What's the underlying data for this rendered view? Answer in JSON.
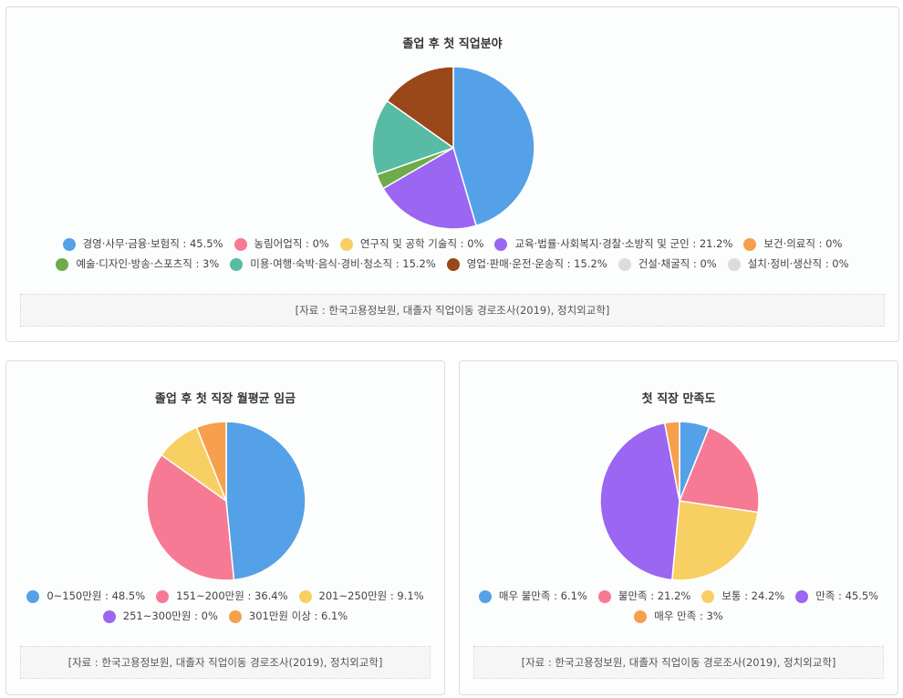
{
  "charts": [
    {
      "title": "졸업 후 첫 직업분야",
      "source": "[자료 : 한국고용정보원, 대졸자 직업이동 경로조사(2019), 정치외교학]",
      "legend": [
        {
          "text": "경영·사무·금융·보험직 : 45.5%",
          "color": "#55a1e8"
        },
        {
          "text": "농림어업직 : 0%",
          "color": "#f77a95"
        },
        {
          "text": "연구직 및 공학 기술직 : 0%",
          "color": "#f7cf63"
        },
        {
          "text": "교육·법률·사회복지·경찰·소방직 및 군인 : 21.2%",
          "color": "#9b66f2"
        },
        {
          "text": "보건·의료직 : 0%",
          "color": "#f6a04d"
        },
        {
          "text": "예술·디자인·방송·스포츠직 : 3%",
          "color": "#6eab4a"
        },
        {
          "text": "미용·여행·숙박·음식·경비·청소직 : 15.2%",
          "color": "#58bba4"
        },
        {
          "text": "영업·판매·운전·운송직 : 15.2%",
          "color": "#9a4719"
        },
        {
          "text": "건설·채굴직 : 0%",
          "color": "#dcdcdc"
        },
        {
          "text": "설치·정비·생산직 : 0%",
          "color": "#dcdcdc"
        }
      ]
    },
    {
      "title": "졸업 후 첫 직장 월평균 임금",
      "source": "[자료 : 한국고용정보원, 대졸자 직업이동 경로조사(2019), 정치외교학]",
      "legend": [
        {
          "text": "0~150만원 : 48.5%",
          "color": "#55a1e8"
        },
        {
          "text": "151~200만원 : 36.4%",
          "color": "#f77a95"
        },
        {
          "text": "201~250만원 : 9.1%",
          "color": "#f7cf63"
        },
        {
          "text": "251~300만원 : 0%",
          "color": "#9b66f2"
        },
        {
          "text": "301만원 이상 : 6.1%",
          "color": "#f6a04d"
        }
      ]
    },
    {
      "title": "첫 직장 만족도",
      "source": "[자료 : 한국고용정보원, 대졸자 직업이동 경로조사(2019), 정치외교학]",
      "legend": [
        {
          "text": "매우 불만족 : 6.1%",
          "color": "#55a1e8"
        },
        {
          "text": "불만족 : 21.2%",
          "color": "#f77a95"
        },
        {
          "text": "보통 : 24.2%",
          "color": "#f7cf63"
        },
        {
          "text": "만족 : 45.5%",
          "color": "#9b66f2"
        },
        {
          "text": "매우 만족 : 3%",
          "color": "#f6a04d"
        }
      ]
    }
  ],
  "chart_data": [
    {
      "type": "pie",
      "title": "졸업 후 첫 직업분야",
      "categories": [
        "경영·사무·금융·보험직",
        "농림어업직",
        "연구직 및 공학 기술직",
        "교육·법률·사회복지·경찰·소방직 및 군인",
        "보건·의료직",
        "예술·디자인·방송·스포츠직",
        "미용·여행·숙박·음식·경비·청소직",
        "영업·판매·운전·운송직",
        "건설·채굴직",
        "설치·정비·생산직"
      ],
      "values": [
        45.5,
        0,
        0,
        21.2,
        0,
        3,
        15.2,
        15.2,
        0,
        0
      ],
      "colors": [
        "#55a1e8",
        "#f77a95",
        "#f7cf63",
        "#9b66f2",
        "#f6a04d",
        "#6eab4a",
        "#58bba4",
        "#9a4719",
        "#dcdcdc",
        "#dcdcdc"
      ],
      "legend_position": "bottom"
    },
    {
      "type": "pie",
      "title": "졸업 후 첫 직장 월평균 임금",
      "categories": [
        "0~150만원",
        "151~200만원",
        "201~250만원",
        "251~300만원",
        "301만원 이상"
      ],
      "values": [
        48.5,
        36.4,
        9.1,
        0,
        6.1
      ],
      "colors": [
        "#55a1e8",
        "#f77a95",
        "#f7cf63",
        "#9b66f2",
        "#f6a04d"
      ],
      "legend_position": "bottom"
    },
    {
      "type": "pie",
      "title": "첫 직장 만족도",
      "categories": [
        "매우 불만족",
        "불만족",
        "보통",
        "만족",
        "매우 만족"
      ],
      "values": [
        6.1,
        21.2,
        24.2,
        45.5,
        3
      ],
      "colors": [
        "#55a1e8",
        "#f77a95",
        "#f7cf63",
        "#9b66f2",
        "#f6a04d"
      ],
      "legend_position": "bottom"
    }
  ]
}
